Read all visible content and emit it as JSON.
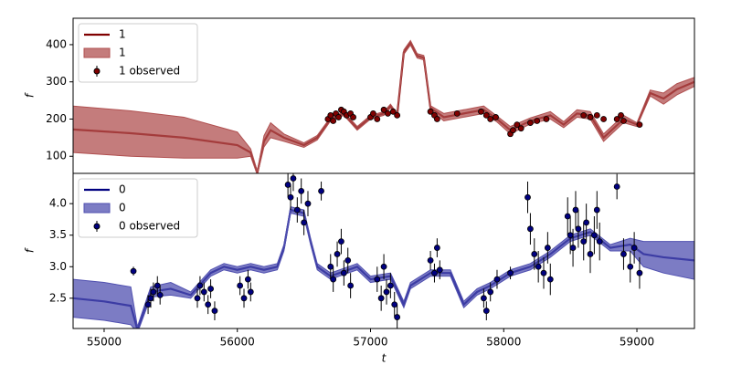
{
  "chart_data": [
    {
      "type": "line",
      "ylabel": "f",
      "xlim": [
        54767,
        59432
      ],
      "ylim": [
        54,
        471
      ],
      "yticks": [
        100,
        200,
        300,
        400
      ],
      "legend": "upper left",
      "series": [
        {
          "name": "1",
          "kind": "line",
          "color": "#800000",
          "x": [
            54767,
            55200,
            55600,
            56000,
            56100,
            56150,
            56200,
            56250,
            56350,
            56500,
            56600,
            56700,
            56800,
            56900,
            57000,
            57100,
            57150,
            57200,
            57250,
            57300,
            57350,
            57400,
            57450,
            57550,
            57700,
            57850,
            57950,
            58050,
            58200,
            58350,
            58450,
            58550,
            58650,
            58750,
            58900,
            59000,
            59100,
            59200,
            59300,
            59432
          ],
          "values": [
            172,
            162,
            150,
            130,
            110,
            55,
            140,
            170,
            150,
            130,
            150,
            200,
            215,
            175,
            205,
            215,
            235,
            210,
            380,
            405,
            370,
            365,
            230,
            205,
            215,
            225,
            200,
            170,
            195,
            210,
            185,
            215,
            210,
            150,
            200,
            185,
            270,
            255,
            280,
            300
          ]
        },
        {
          "name": "1",
          "kind": "band",
          "color": "#b05050",
          "x": [
            54767,
            55200,
            55600,
            56000,
            56100,
            56150,
            56200,
            56250,
            56350,
            56500,
            56600,
            56700,
            56800,
            56900,
            57000,
            57100,
            57150,
            57200,
            57250,
            57300,
            57350,
            57400,
            57450,
            57550,
            57700,
            57850,
            57950,
            58050,
            58200,
            58350,
            58450,
            58550,
            58650,
            58750,
            58900,
            59000,
            59100,
            59200,
            59300,
            59432
          ],
          "lower": [
            110,
            100,
            95,
            95,
            100,
            50,
            125,
            150,
            140,
            124,
            144,
            195,
            210,
            170,
            200,
            210,
            230,
            205,
            374,
            399,
            364,
            359,
            224,
            195,
            205,
            215,
            192,
            160,
            187,
            200,
            177,
            205,
            200,
            140,
            190,
            180,
            262,
            240,
            265,
            288
          ],
          "upper": [
            235,
            222,
            205,
            165,
            120,
            60,
            155,
            190,
            160,
            136,
            156,
            205,
            220,
            180,
            210,
            220,
            240,
            215,
            386,
            411,
            376,
            371,
            236,
            215,
            225,
            235,
            208,
            180,
            203,
            220,
            193,
            225,
            220,
            160,
            210,
            190,
            278,
            270,
            295,
            312
          ]
        },
        {
          "name": "1 observed",
          "kind": "points",
          "color": "#800000",
          "x": [
            56680,
            56700,
            56720,
            56740,
            56760,
            56780,
            56800,
            56820,
            56850,
            56870,
            57000,
            57020,
            57050,
            57100,
            57130,
            57170,
            57200,
            57450,
            57480,
            57500,
            57650,
            57830,
            57870,
            57900,
            57940,
            58050,
            58070,
            58100,
            58130,
            58200,
            58250,
            58320,
            58600,
            58650,
            58700,
            58750,
            58850,
            58880,
            58900,
            59020
          ],
          "values": [
            200,
            210,
            195,
            215,
            205,
            225,
            220,
            210,
            215,
            205,
            205,
            215,
            200,
            225,
            215,
            220,
            210,
            220,
            210,
            200,
            215,
            220,
            210,
            200,
            205,
            160,
            170,
            185,
            175,
            190,
            195,
            200,
            210,
            205,
            210,
            200,
            200,
            210,
            195,
            185
          ],
          "errors": [
            5,
            5,
            5,
            5,
            5,
            5,
            5,
            5,
            5,
            5,
            5,
            5,
            5,
            5,
            5,
            5,
            5,
            5,
            5,
            5,
            5,
            5,
            5,
            5,
            5,
            5,
            5,
            5,
            5,
            5,
            5,
            5,
            5,
            5,
            5,
            5,
            5,
            5,
            5,
            5
          ]
        }
      ]
    },
    {
      "type": "line",
      "ylabel": "f",
      "xlabel": "t",
      "xlim": [
        54767,
        59432
      ],
      "ylim": [
        2.02,
        4.48
      ],
      "xticks": [
        55000,
        56000,
        57000,
        58000,
        59000
      ],
      "yticks": [
        2.5,
        {
          "value": 3,
          "label": "3.0"
        },
        3.5,
        {
          "value": 4,
          "label": "4.0"
        }
      ],
      "legend": "upper left",
      "series": [
        {
          "name": "0",
          "kind": "line",
          "color": "#000080",
          "x": [
            54767,
            55000,
            55200,
            55250,
            55350,
            55500,
            55650,
            55800,
            55900,
            56000,
            56100,
            56200,
            56300,
            56350,
            56400,
            56500,
            56550,
            56600,
            56700,
            56900,
            57000,
            57150,
            57250,
            57300,
            57450,
            57600,
            57700,
            57800,
            57900,
            58050,
            58200,
            58350,
            58500,
            58650,
            58800,
            58950,
            59050,
            59200,
            59432
          ],
          "values": [
            2.5,
            2.45,
            2.38,
            2.0,
            2.6,
            2.65,
            2.55,
            2.9,
            3.0,
            2.95,
            3.0,
            2.95,
            3.0,
            3.3,
            3.9,
            3.85,
            3.4,
            3.0,
            2.85,
            3.0,
            2.8,
            2.85,
            2.4,
            2.7,
            2.9,
            2.9,
            2.4,
            2.6,
            2.7,
            2.9,
            3.0,
            3.2,
            3.45,
            3.55,
            3.3,
            3.35,
            3.2,
            3.15,
            3.1
          ]
        },
        {
          "name": "0",
          "kind": "band",
          "color": "#5050b0",
          "x": [
            54767,
            55000,
            55200,
            55250,
            55350,
            55500,
            55650,
            55800,
            55900,
            56000,
            56100,
            56200,
            56300,
            56350,
            56400,
            56500,
            56550,
            56600,
            56700,
            56900,
            57000,
            57150,
            57250,
            57300,
            57450,
            57600,
            57700,
            57800,
            57900,
            58050,
            58200,
            58350,
            58500,
            58650,
            58800,
            58950,
            59050,
            59200,
            59432
          ],
          "lower": [
            2.2,
            2.15,
            2.08,
            1.95,
            2.52,
            2.55,
            2.5,
            2.85,
            2.95,
            2.9,
            2.95,
            2.9,
            2.95,
            3.25,
            3.85,
            3.8,
            3.35,
            2.95,
            2.8,
            2.95,
            2.75,
            2.8,
            2.35,
            2.65,
            2.85,
            2.85,
            2.35,
            2.55,
            2.65,
            2.85,
            2.95,
            3.15,
            3.4,
            3.5,
            3.25,
            3.25,
            3.0,
            2.9,
            2.8
          ],
          "upper": [
            2.8,
            2.75,
            2.68,
            2.05,
            2.68,
            2.75,
            2.6,
            2.95,
            3.05,
            3.0,
            3.05,
            3.0,
            3.05,
            3.35,
            3.95,
            3.9,
            3.45,
            3.05,
            2.9,
            3.05,
            2.85,
            2.9,
            2.45,
            2.75,
            2.95,
            2.95,
            2.45,
            2.65,
            2.75,
            2.95,
            3.05,
            3.25,
            3.5,
            3.6,
            3.35,
            3.45,
            3.4,
            3.4,
            3.4
          ]
        },
        {
          "name": "0 observed",
          "kind": "points",
          "color": "#000080",
          "x": [
            55220,
            55330,
            55350,
            55370,
            55400,
            55420,
            55700,
            55720,
            55750,
            55780,
            55800,
            55830,
            56020,
            56050,
            56080,
            56100,
            56380,
            56400,
            56420,
            56450,
            56480,
            56500,
            56530,
            56630,
            56700,
            56720,
            56750,
            56780,
            56800,
            56830,
            56850,
            57050,
            57080,
            57100,
            57120,
            57150,
            57180,
            57200,
            57450,
            57480,
            57500,
            57520,
            57850,
            57870,
            57900,
            57950,
            58050,
            58180,
            58200,
            58230,
            58260,
            58300,
            58330,
            58350,
            58480,
            58500,
            58520,
            58540,
            58560,
            58600,
            58620,
            58650,
            58680,
            58700,
            58720,
            58850,
            58900,
            58950,
            58980,
            59020
          ],
          "values": [
            2.93,
            2.4,
            2.5,
            2.6,
            2.7,
            2.55,
            2.5,
            2.7,
            2.6,
            2.4,
            2.65,
            2.3,
            2.7,
            2.5,
            2.8,
            2.6,
            4.3,
            4.1,
            4.4,
            3.9,
            4.2,
            3.7,
            4.0,
            4.2,
            3.0,
            2.8,
            3.2,
            3.4,
            2.9,
            3.1,
            2.7,
            2.8,
            2.5,
            3.0,
            2.6,
            2.7,
            2.4,
            2.2,
            3.1,
            2.9,
            3.3,
            2.95,
            2.5,
            2.3,
            2.6,
            2.8,
            2.9,
            4.1,
            3.6,
            3.2,
            3.0,
            2.9,
            3.3,
            2.8,
            3.8,
            3.5,
            3.3,
            3.9,
            3.6,
            3.4,
            3.7,
            3.2,
            3.5,
            3.9,
            3.4,
            4.27,
            3.2,
            3.0,
            3.3,
            2.9
          ],
          "errors": [
            0.07,
            0.15,
            0.15,
            0.15,
            0.15,
            0.15,
            0.15,
            0.15,
            0.15,
            0.15,
            0.15,
            0.15,
            0.15,
            0.15,
            0.15,
            0.15,
            0.2,
            0.2,
            0.2,
            0.2,
            0.2,
            0.2,
            0.2,
            0.15,
            0.2,
            0.2,
            0.2,
            0.2,
            0.2,
            0.2,
            0.2,
            0.2,
            0.2,
            0.2,
            0.2,
            0.2,
            0.2,
            0.2,
            0.15,
            0.15,
            0.15,
            0.15,
            0.15,
            0.15,
            0.15,
            0.15,
            0.1,
            0.25,
            0.25,
            0.25,
            0.25,
            0.25,
            0.25,
            0.25,
            0.3,
            0.3,
            0.3,
            0.3,
            0.3,
            0.3,
            0.3,
            0.3,
            0.3,
            0.3,
            0.3,
            0.2,
            0.25,
            0.25,
            0.25,
            0.25
          ]
        }
      ]
    }
  ]
}
